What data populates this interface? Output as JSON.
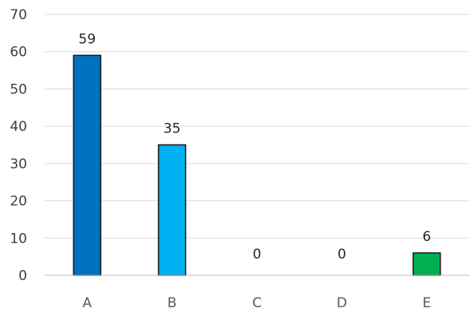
{
  "chart_data": {
    "type": "bar",
    "categories": [
      "A",
      "B",
      "C",
      "D",
      "E"
    ],
    "values": [
      59,
      35,
      0,
      0,
      6
    ],
    "data_labels": [
      "59",
      "35",
      "0",
      "0",
      "6"
    ],
    "colors": [
      "#0070c0",
      "#00b0f0",
      "#9dc3e6",
      "#9dc3e6",
      "#00b050"
    ],
    "title": "",
    "xlabel": "",
    "ylabel": "",
    "ylim": [
      0,
      70
    ],
    "yticks": [
      "0",
      "10",
      "20",
      "30",
      "40",
      "50",
      "60",
      "70"
    ],
    "grid": true,
    "legend": "none"
  }
}
